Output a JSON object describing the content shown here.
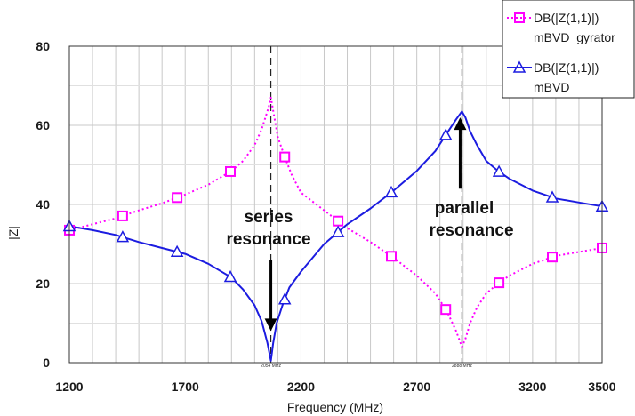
{
  "chart_data": {
    "type": "line",
    "title": "",
    "xlabel": "Frequency (MHz)",
    "ylabel": "|Z|",
    "xlim": [
      1200,
      3500
    ],
    "ylim": [
      0,
      80
    ],
    "x_ticks": [
      "1200",
      "1700",
      "2200",
      "2700",
      "3200",
      "3500"
    ],
    "y_ticks": [
      "0",
      "20",
      "40",
      "60",
      "80"
    ],
    "grid": true,
    "legend_position": "top-right",
    "series": [
      {
        "name": "DB(|Z(1,1)|)",
        "name_line2": "mBVD_gyrator",
        "color": "#ff00ff",
        "line_style": "dotted",
        "marker": "square",
        "x": [
          1200,
          1300,
          1400,
          1500,
          1600,
          1700,
          1800,
          1900,
          1950,
          2000,
          2030,
          2060,
          2070,
          2085,
          2100,
          2130,
          2160,
          2200,
          2300,
          2400,
          2500,
          2600,
          2700,
          2780,
          2830,
          2870,
          2895,
          2910,
          2930,
          2960,
          3000,
          3050,
          3100,
          3200,
          3300,
          3400,
          3500
        ],
        "y": [
          33.5,
          35,
          36.5,
          38.5,
          40.3,
          42.5,
          45,
          48.5,
          51,
          55,
          59,
          64.5,
          67,
          62,
          57,
          52,
          47.5,
          43,
          38.5,
          34,
          30.5,
          26.5,
          22,
          17.5,
          13,
          8,
          4,
          6,
          10,
          14,
          17.5,
          20,
          22,
          25,
          27,
          28,
          29
        ]
      },
      {
        "name": "DB(|Z(1,1)|)",
        "name_line2": "mBVD",
        "color": "#1c1ce0",
        "line_style": "solid",
        "marker": "triangle",
        "x": [
          1200,
          1300,
          1400,
          1500,
          1600,
          1700,
          1800,
          1900,
          1950,
          2000,
          2030,
          2055,
          2070,
          2080,
          2095,
          2120,
          2150,
          2200,
          2300,
          2400,
          2500,
          2600,
          2700,
          2780,
          2830,
          2870,
          2895,
          2910,
          2930,
          2960,
          3000,
          3050,
          3100,
          3200,
          3300,
          3400,
          3500
        ],
        "y": [
          34.5,
          33.5,
          32.3,
          30.5,
          29,
          27.5,
          25,
          21.5,
          18.5,
          14.5,
          10.5,
          5,
          0.5,
          5,
          10,
          14.5,
          19,
          23,
          30,
          35,
          39,
          43.5,
          48.5,
          53.5,
          58,
          61.5,
          63.5,
          62,
          58.5,
          55,
          51,
          48.5,
          46.5,
          43.5,
          41.5,
          40.5,
          39.5
        ]
      }
    ],
    "annotations": [
      {
        "line1": "series",
        "line2": "resonance",
        "x": 2070,
        "arrow_from": 26,
        "arrow_to": 8
      },
      {
        "line1": "parallel",
        "line2": "resonance",
        "x": 2895,
        "arrow_from": 44,
        "arrow_to": 62
      }
    ],
    "vertical_markers": [
      {
        "x": 2070,
        "label": "2054 MHz"
      },
      {
        "x": 2895,
        "label": "2888 MHz"
      }
    ]
  }
}
